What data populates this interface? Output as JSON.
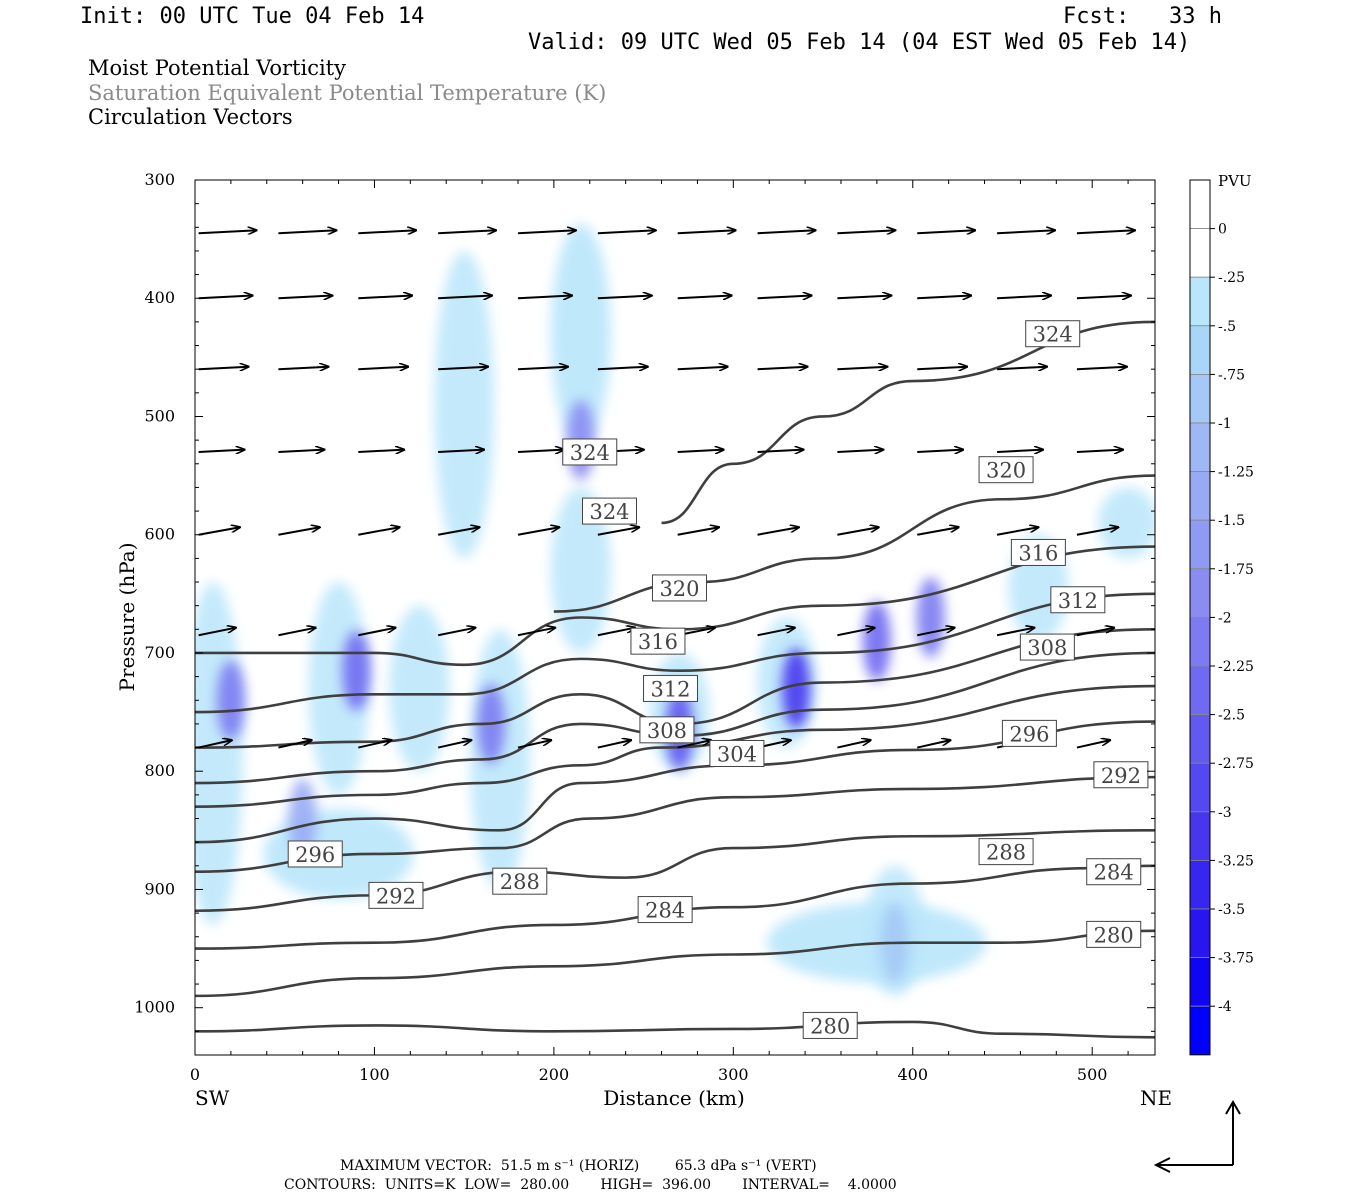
{
  "header": {
    "init": "Init: 00 UTC Tue 04 Feb 14",
    "fcst": "Fcst:   33 h",
    "valid": "Valid: 09 UTC Wed 05 Feb 14 (04 EST Wed 05 Feb 14)"
  },
  "fields": [
    {
      "label": "Moist Potential Vorticity",
      "color": "#000000"
    },
    {
      "label": "Saturation Equivalent Potential Temperature (K)",
      "color": "#8a8a8a"
    },
    {
      "label": "Circulation Vectors",
      "color": "#000000"
    }
  ],
  "footer": {
    "max_vector": "MAXIMUM VECTOR:  51.5 m s⁻¹ (HORIZ)        65.3 dPa s⁻¹ (VERT)",
    "contours": "CONTOURS:  UNITS=K  LOW=  280.00       HIGH=  396.00       INTERVAL=    4.0000"
  },
  "chart_data": {
    "type": "contour",
    "xlabel": "Distance (km)",
    "ylabel": "Pressure (hPa)",
    "xlim": [
      0,
      535
    ],
    "ylim": [
      1040,
      300
    ],
    "x_ticks": [
      0,
      100,
      200,
      300,
      400,
      500
    ],
    "y_ticks": [
      300,
      400,
      500,
      600,
      700,
      800,
      900,
      1000
    ],
    "x_end_labels": {
      "left": "SW",
      "right": "NE"
    },
    "colorbar": {
      "unit": "PVU",
      "levels": [
        "0",
        "-.25",
        "-.5",
        "-.75",
        "-1",
        "-1.25",
        "-1.5",
        "-1.75",
        "-2",
        "-2.25",
        "-2.5",
        "-2.75",
        "-3",
        "-3.25",
        "-3.5",
        "-3.75",
        "-4"
      ],
      "colors": [
        "#ffffff",
        "#ffffff",
        "#b9e6fb",
        "#a9d5f8",
        "#a5c8f6",
        "#9fb8f5",
        "#99aaf4",
        "#8f9bf3",
        "#8b8cf2",
        "#7c7bf1",
        "#6f6af1",
        "#6159f0",
        "#5448f0",
        "#4637ef",
        "#3726ef",
        "#2915f0",
        "#1004f4",
        "#0000ff"
      ]
    },
    "contour_labels": [
      {
        "value": "324",
        "x": 478,
        "p": 430
      },
      {
        "value": "324",
        "x": 220,
        "p": 530
      },
      {
        "value": "324",
        "x": 231,
        "p": 580
      },
      {
        "value": "320",
        "x": 452,
        "p": 545
      },
      {
        "value": "320",
        "x": 270,
        "p": 645
      },
      {
        "value": "316",
        "x": 470,
        "p": 615
      },
      {
        "value": "316",
        "x": 258,
        "p": 690
      },
      {
        "value": "312",
        "x": 492,
        "p": 655
      },
      {
        "value": "312",
        "x": 265,
        "p": 730
      },
      {
        "value": "308",
        "x": 475,
        "p": 695
      },
      {
        "value": "308",
        "x": 263,
        "p": 765
      },
      {
        "value": "304",
        "x": 302,
        "p": 785
      },
      {
        "value": "296",
        "x": 465,
        "p": 768
      },
      {
        "value": "296",
        "x": 67,
        "p": 870
      },
      {
        "value": "292",
        "x": 516,
        "p": 803
      },
      {
        "value": "292",
        "x": 112,
        "p": 905
      },
      {
        "value": "288",
        "x": 452,
        "p": 868
      },
      {
        "value": "288",
        "x": 181,
        "p": 893
      },
      {
        "value": "284",
        "x": 512,
        "p": 885
      },
      {
        "value": "284",
        "x": 262,
        "p": 917
      },
      {
        "value": "280",
        "x": 512,
        "p": 938
      },
      {
        "value": "280",
        "x": 354,
        "p": 1015
      }
    ],
    "pv_blobs": [
      {
        "x": 215,
        "p": 520,
        "pv": -1.8
      },
      {
        "x": 20,
        "p": 740,
        "pv": -2.0
      },
      {
        "x": 90,
        "p": 715,
        "pv": -2.2
      },
      {
        "x": 165,
        "p": 760,
        "pv": -2.0
      },
      {
        "x": 270,
        "p": 765,
        "pv": -2.5
      },
      {
        "x": 335,
        "p": 730,
        "pv": -3.0
      },
      {
        "x": 380,
        "p": 690,
        "pv": -2.2
      },
      {
        "x": 410,
        "p": 670,
        "pv": -2.0
      },
      {
        "x": 60,
        "p": 840,
        "pv": -1.2
      },
      {
        "x": 390,
        "p": 945,
        "pv": -0.8
      }
    ],
    "vector_reference": {
      "horiz": 51.5,
      "vert": 65.3
    }
  }
}
